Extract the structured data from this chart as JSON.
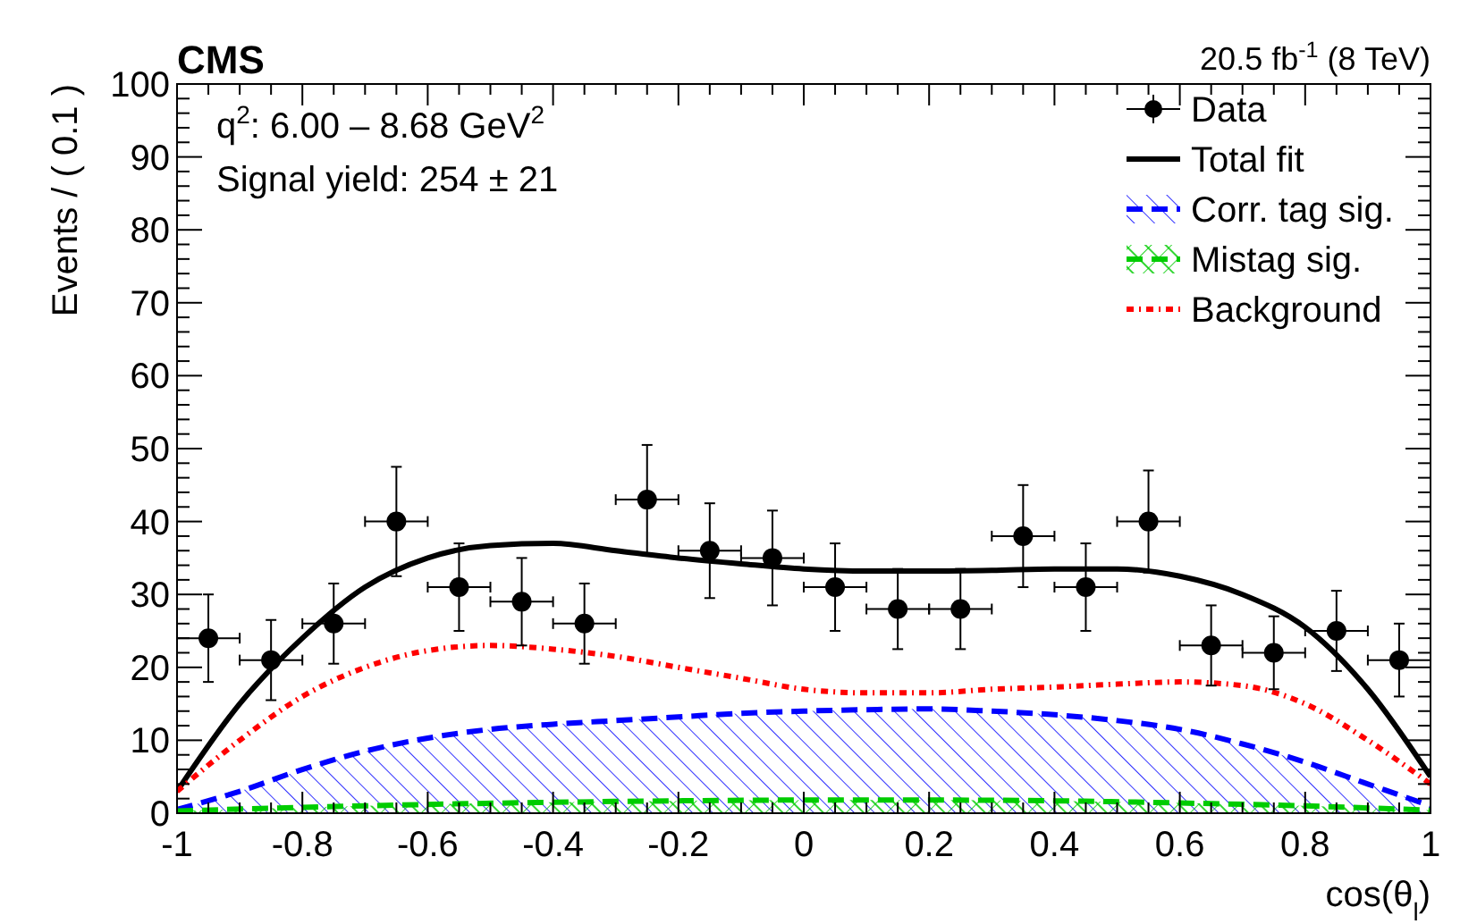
{
  "chart_data": {
    "type": "line",
    "title": "CMS",
    "subtitle": "20.5 fb$^{-1}$ (8 TeV)",
    "xlabel": "cos(θ$_{l}$)",
    "ylabel": "Events / ( 0.1 )",
    "annotations": [
      "q$^{2}$: 6.00 – 8.68 GeV$^{2}$",
      "Signal yield: 254  ± 21"
    ],
    "xlim": [
      -1,
      1
    ],
    "xticks": [
      -1,
      -0.8,
      -0.6,
      -0.4,
      -0.2,
      0,
      0.2,
      0.4,
      0.6,
      0.8,
      1
    ],
    "ylim": [
      0,
      100
    ],
    "yticks": [
      0,
      10,
      20,
      30,
      40,
      50,
      60,
      70,
      80,
      90,
      100
    ],
    "legend": "top right",
    "grid": false,
    "series": [
      {
        "name": "Data",
        "type": "scatter",
        "marker": "circle",
        "color": "#000000",
        "x": [
          -0.95,
          -0.85,
          -0.75,
          -0.65,
          -0.55,
          -0.45,
          -0.35,
          -0.25,
          -0.15,
          -0.05,
          0.05,
          0.15,
          0.25,
          0.35,
          0.45,
          0.55,
          0.65,
          0.75,
          0.85,
          0.95
        ],
        "values": [
          24,
          21,
          26,
          40,
          31,
          29,
          26,
          43,
          36,
          35,
          31,
          28,
          28,
          38,
          31,
          40,
          23,
          22,
          25,
          21
        ],
        "errors": [
          6,
          5.5,
          5.5,
          7.5,
          6,
          6,
          5.5,
          7.5,
          6.5,
          6.5,
          6,
          5.5,
          5.5,
          7,
          6,
          7,
          5.5,
          5,
          5.5,
          5
        ],
        "xerrors": [
          0.05,
          0.05,
          0.05,
          0.05,
          0.05,
          0.05,
          0.05,
          0.05,
          0.05,
          0.05,
          0.05,
          0.05,
          0.05,
          0.05,
          0.05,
          0.05,
          0.05,
          0.05,
          0.05,
          0.05
        ]
      },
      {
        "name": "Total fit",
        "line_style": "solid",
        "color": "#000000",
        "x": [
          -1,
          -0.9,
          -0.8,
          -0.7,
          -0.6,
          -0.5,
          -0.4,
          -0.3,
          -0.2,
          -0.1,
          0,
          0.1,
          0.2,
          0.3,
          0.4,
          0.5,
          0.6,
          0.7,
          0.8,
          0.9,
          1
        ],
        "values": [
          3,
          15,
          24,
          31,
          35,
          36.7,
          37,
          36,
          35,
          34.2,
          33.5,
          33.2,
          33.2,
          33.3,
          33.5,
          33.5,
          32.5,
          30,
          25.5,
          17,
          5
        ]
      },
      {
        "name": "Corr. tag sig.",
        "type": "area",
        "line_style": "dashed",
        "color": "#0000ff",
        "x": [
          -1,
          -0.9,
          -0.8,
          -0.7,
          -0.6,
          -0.5,
          -0.4,
          -0.3,
          -0.2,
          -0.1,
          0,
          0.1,
          0.2,
          0.3,
          0.4,
          0.5,
          0.6,
          0.7,
          0.8,
          0.9,
          1
        ],
        "values": [
          0.5,
          3,
          6,
          8.5,
          10.3,
          11.5,
          12.2,
          12.7,
          13.2,
          13.7,
          14,
          14.2,
          14.3,
          14,
          13.5,
          12.7,
          11.5,
          9.5,
          7,
          4,
          1
        ]
      },
      {
        "name": "Mistag sig.",
        "type": "area",
        "line_style": "dashed",
        "color": "#00cc00",
        "x": [
          -1,
          -0.8,
          -0.6,
          -0.4,
          -0.2,
          0,
          0.2,
          0.4,
          0.6,
          0.8,
          1
        ],
        "values": [
          0.3,
          0.8,
          1.2,
          1.5,
          1.7,
          1.8,
          1.8,
          1.7,
          1.4,
          1,
          0.4
        ]
      },
      {
        "name": "Background",
        "line_style": "dotted",
        "color": "#ff0000",
        "x": [
          -1,
          -0.9,
          -0.8,
          -0.7,
          -0.6,
          -0.5,
          -0.4,
          -0.3,
          -0.2,
          -0.1,
          0,
          0.1,
          0.2,
          0.3,
          0.4,
          0.5,
          0.6,
          0.7,
          0.8,
          0.9,
          1
        ],
        "values": [
          3,
          10,
          16,
          20,
          22.3,
          23,
          22.5,
          21.5,
          20,
          18.5,
          17,
          16.5,
          16.5,
          17,
          17.3,
          17.7,
          18,
          17.5,
          15,
          10,
          4
        ]
      }
    ]
  }
}
